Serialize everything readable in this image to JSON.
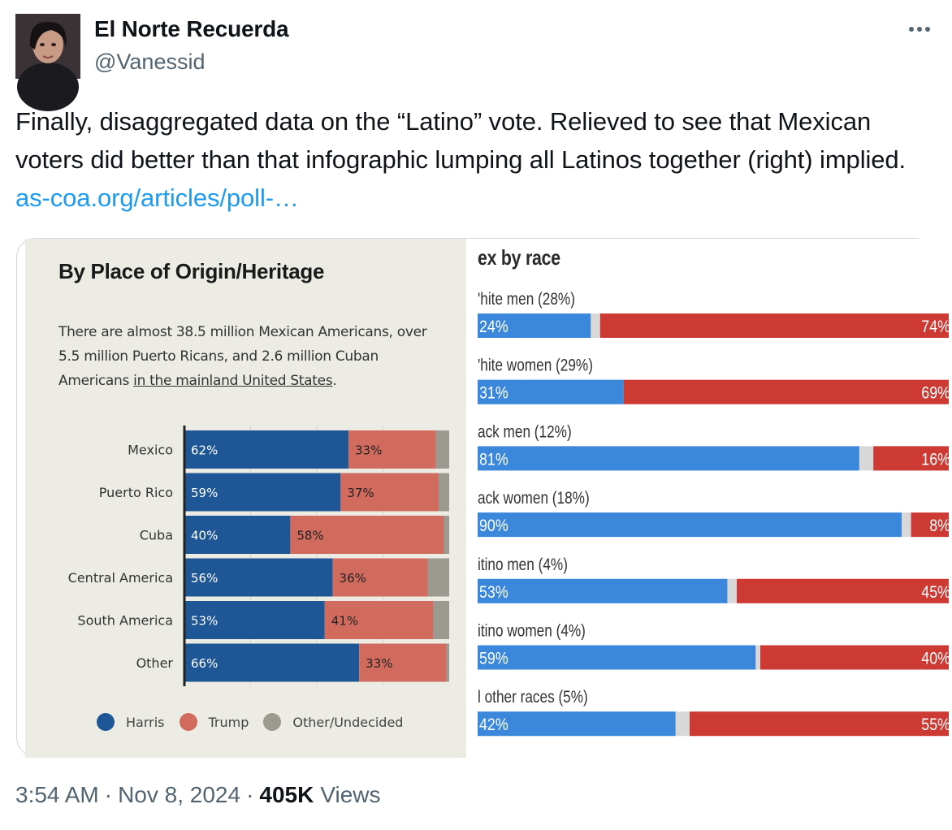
{
  "tweet": {
    "display_name": "El Norte Recuerda",
    "handle": "@Vanessid",
    "text": "Finally, disaggregated data on the “Latino” vote. Relieved to see that Mexican voters did better than that infographic lumping all Latinos together (right) implied. ",
    "link_text": "as-coa.org/articles/poll-…",
    "time": "3:54 AM",
    "date": "Nov 8, 2024",
    "views_count": "405K",
    "views_label": "Views",
    "separator": "·"
  },
  "colors": {
    "harris_left": "#1f5796",
    "trump_left": "#d06b5e",
    "other_left": "#9a9a90",
    "harris_right": "#3a87dc",
    "trump_right": "#cc3a33",
    "gap_right": "#d8d8d8",
    "link": "#1d9bf0"
  },
  "chart_data": [
    {
      "type": "bar",
      "orientation": "horizontal-stacked",
      "title": "By Place of Origin/Heritage",
      "description_text": "There are almost 38.5 million Mexican Americans, over 5.5 million Puerto Ricans, and 2.6 million Cuban Americans ",
      "description_link": "in the mainland United States",
      "description_end": ".",
      "categories": [
        "Mexico",
        "Puerto Rico",
        "Cuba",
        "Central America",
        "South America",
        "Other"
      ],
      "series": [
        {
          "name": "Harris",
          "values": [
            62,
            59,
            40,
            56,
            53,
            66
          ]
        },
        {
          "name": "Trump",
          "values": [
            33,
            37,
            58,
            36,
            41,
            33
          ]
        },
        {
          "name": "Other/Undecided",
          "values": [
            5,
            4,
            2,
            8,
            6,
            1
          ]
        }
      ],
      "value_labels": {
        "Harris": [
          "62%",
          "59%",
          "40%",
          "56%",
          "53%",
          "66%"
        ],
        "Trump": [
          "33%",
          "37%",
          "58%",
          "36%",
          "41%",
          "33%"
        ]
      },
      "legend": [
        "Harris",
        "Trump",
        "Other/Undecided"
      ],
      "xlim": [
        0,
        100
      ]
    },
    {
      "type": "bar",
      "orientation": "horizontal-stacked",
      "title": "ex by race",
      "categories": [
        "'hite men (28%)",
        "'hite women (29%)",
        "ack men (12%)",
        "ack women (18%)",
        "itino men (4%)",
        "itino women (4%)",
        "l other races (5%)"
      ],
      "series": [
        {
          "name": "Harris",
          "values": [
            24,
            31,
            81,
            90,
            53,
            59,
            42
          ]
        },
        {
          "name": "Trump",
          "values": [
            74,
            69,
            16,
            8,
            45,
            40,
            55
          ]
        }
      ],
      "value_labels": {
        "Harris": [
          "24%",
          "31%",
          "81%",
          "90%",
          "53%",
          "59%",
          "42%"
        ],
        "Trump": [
          "74%",
          "69%",
          "16%",
          "8%",
          "45%",
          "40%",
          "55%"
        ]
      },
      "xlim": [
        0,
        100
      ]
    }
  ]
}
